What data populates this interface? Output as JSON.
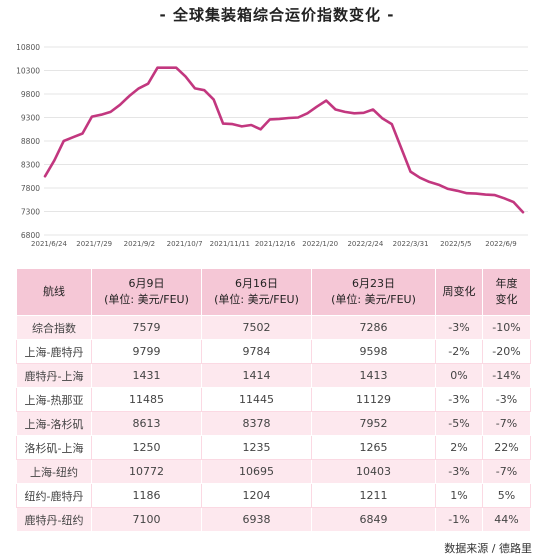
{
  "chart_data": {
    "type": "line",
    "title": "- 全球集装箱综合运价指数变化 -",
    "ylim": [
      6800,
      10800
    ],
    "yticks": [
      6800,
      7300,
      7800,
      8300,
      8800,
      9300,
      9800,
      10300,
      10800
    ],
    "ytick_labels": [
      "6800",
      "7300",
      "7800",
      "8300",
      "8800",
      "9300",
      "9800",
      "10300",
      "10800"
    ],
    "xtick_labels": [
      "2021/6/24",
      "2021/7/29",
      "2021/9/2",
      "2021/10/7",
      "2021/11/11",
      "2021/12/16",
      "2022/1/20",
      "2022/2/24",
      "2022/3/31",
      "2022/5/5",
      "2022/6/9"
    ],
    "grid": "horizontal",
    "color": "#c2377f",
    "series": [
      {
        "values": [
          8050,
          8390,
          8800,
          8880,
          8960,
          9320,
          9360,
          9420,
          9570,
          9760,
          9920,
          10020,
          10360,
          10360,
          10360,
          10170,
          9920,
          9880,
          9680,
          9170,
          9160,
          9110,
          9140,
          9050,
          9260,
          9270,
          9290,
          9300,
          9390,
          9530,
          9660,
          9470,
          9420,
          9390,
          9400,
          9470,
          9280,
          9160,
          8650,
          8150,
          8020,
          7930,
          7870,
          7780,
          7740,
          7690,
          7680,
          7660,
          7650,
          7580,
          7500,
          7286
        ]
      }
    ]
  },
  "table": {
    "headers": {
      "route": "航线",
      "jun9_date": "6月9日",
      "jun9_unit": "(单位: 美元/FEU)",
      "jun16_date": "6月16日",
      "jun16_unit": "(单位: 美元/FEU)",
      "jun23_date": "6月23日",
      "jun23_unit": "(单位: 美元/FEU)",
      "weekly": "周变化",
      "yearly_1": "年度",
      "yearly_2": "变化"
    },
    "rows": [
      [
        "综合指数",
        "7579",
        "7502",
        "7286",
        "-3%",
        "-10%"
      ],
      [
        "上海-鹿特丹",
        "9799",
        "9784",
        "9598",
        "-2%",
        "-20%"
      ],
      [
        "鹿特丹-上海",
        "1431",
        "1414",
        "1413",
        "0%",
        "-14%"
      ],
      [
        "上海-热那亚",
        "11485",
        "11445",
        "11129",
        "-3%",
        "-3%"
      ],
      [
        "上海-洛杉矶",
        "8613",
        "8378",
        "7952",
        "-5%",
        "-7%"
      ],
      [
        "洛杉矶-上海",
        "1250",
        "1235",
        "1265",
        "2%",
        "22%"
      ],
      [
        "上海-纽约",
        "10772",
        "10695",
        "10403",
        "-3%",
        "-7%"
      ],
      [
        "纽约-鹿特丹",
        "1186",
        "1204",
        "1211",
        "1%",
        "5%"
      ],
      [
        "鹿特丹-纽约",
        "7100",
        "6938",
        "6849",
        "-1%",
        "44%"
      ]
    ]
  },
  "source": "数据来源 / 德路里"
}
